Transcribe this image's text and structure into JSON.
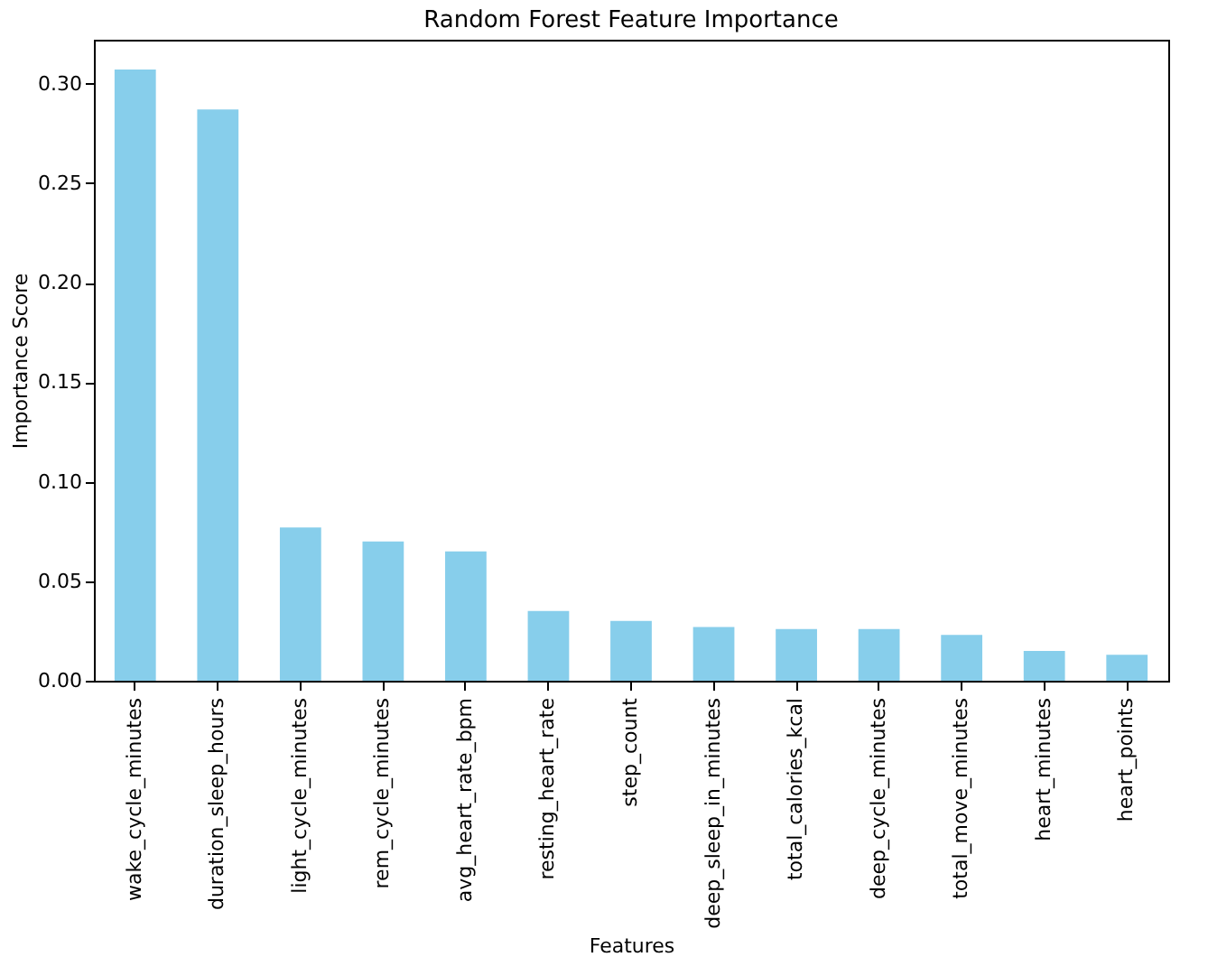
{
  "chart_data": {
    "type": "bar",
    "title": "Random Forest Feature Importance",
    "xlabel": "Features",
    "ylabel": "Importance Score",
    "categories": [
      "wake_cycle_minutes",
      "duration_sleep_hours",
      "light_cycle_minutes",
      "rem_cycle_minutes",
      "avg_heart_rate_bpm",
      "resting_heart_rate",
      "step_count",
      "deep_sleep_in_minutes",
      "total_calories_kcal",
      "deep_cycle_minutes",
      "total_move_minutes",
      "heart_minutes",
      "heart_points"
    ],
    "values": [
      0.307,
      0.287,
      0.077,
      0.07,
      0.065,
      0.035,
      0.03,
      0.027,
      0.026,
      0.026,
      0.023,
      0.015,
      0.013
    ],
    "color": "#87ceeb",
    "ylim": [
      0,
      0.322
    ],
    "yticks": [
      {
        "value": 0,
        "label": "0.00"
      },
      {
        "value": 0.05,
        "label": "0.05"
      },
      {
        "value": 0.1,
        "label": "0.10"
      },
      {
        "value": 0.15,
        "label": "0.15"
      },
      {
        "value": 0.2,
        "label": "0.20"
      },
      {
        "value": 0.25,
        "label": "0.25"
      },
      {
        "value": 0.3,
        "label": "0.30"
      }
    ],
    "grid": false
  }
}
